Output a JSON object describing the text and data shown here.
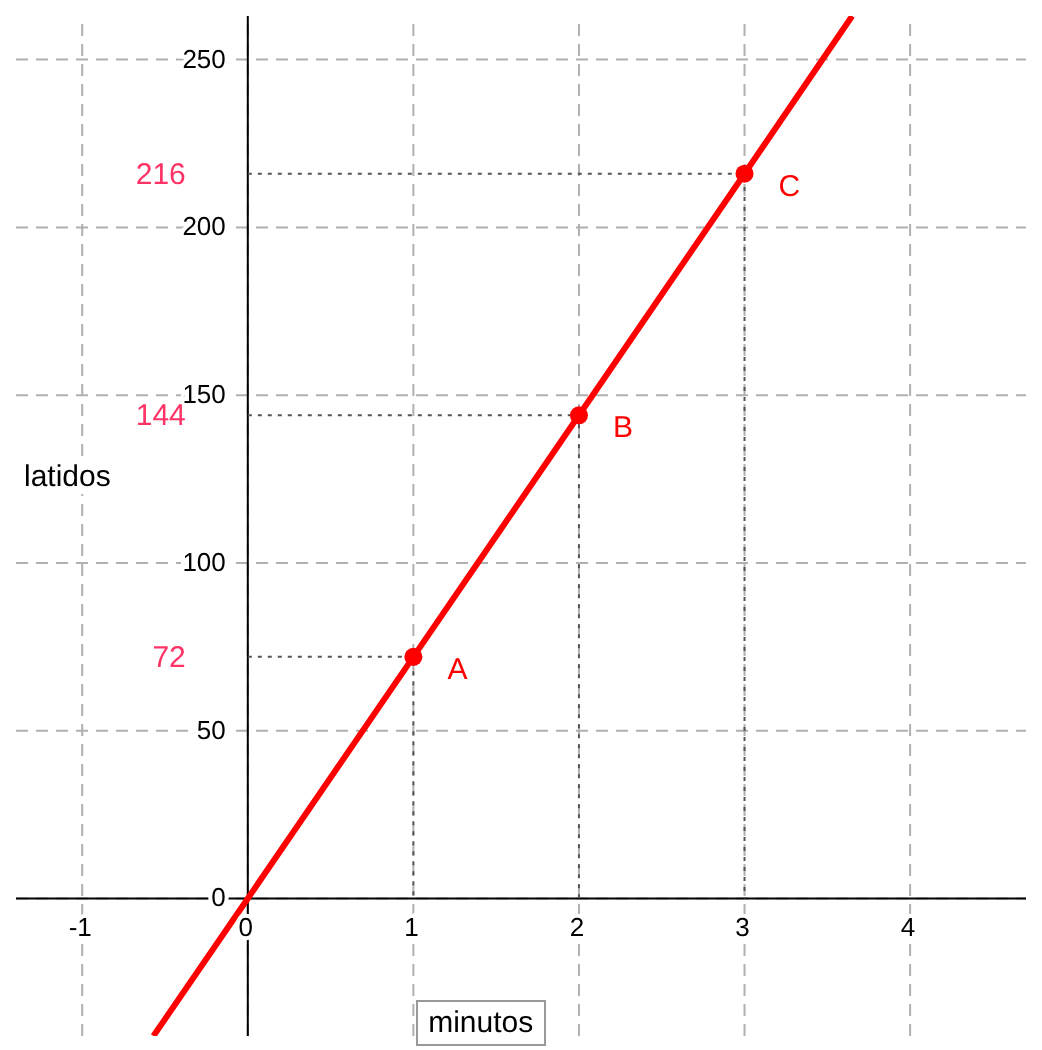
{
  "chart_data": {
    "type": "line",
    "xlabel": "minutos",
    "ylabel": "latidos",
    "xlim": [
      -1.4,
      4.7
    ],
    "ylim": [
      -41,
      263
    ],
    "xticks": [
      -1,
      0,
      1,
      2,
      3,
      4
    ],
    "yticks": [
      0,
      50,
      100,
      150,
      200,
      250
    ],
    "grid": true,
    "series": [
      {
        "color": "#ff0000",
        "x": [
          -0.57,
          0,
          1,
          2,
          3,
          3.65
        ],
        "values": [
          -41,
          0,
          72,
          144,
          216,
          263
        ],
        "marker": "none",
        "line_style": "solid"
      },
      {
        "type": "scatter",
        "color": "#ff0000",
        "x": [
          1,
          2,
          3
        ],
        "values": [
          72,
          144,
          216
        ],
        "marker": "circle"
      },
      {
        "color": "#555555",
        "x": [
          0,
          1,
          1
        ],
        "values": [
          72,
          72,
          0
        ],
        "marker": "none",
        "line_style": "dotted"
      },
      {
        "color": "#555555",
        "x": [
          0,
          2,
          2
        ],
        "values": [
          144,
          144,
          0
        ],
        "marker": "none",
        "line_style": "dotted"
      },
      {
        "color": "#555555",
        "x": [
          0,
          3,
          3
        ],
        "values": [
          216,
          216,
          0
        ],
        "marker": "none",
        "line_style": "dotted"
      }
    ],
    "annotations": [
      {
        "text": "72",
        "x": 0,
        "y": 72
      },
      {
        "text": "144",
        "x": 0,
        "y": 144
      },
      {
        "text": "216",
        "x": 0,
        "y": 216
      },
      {
        "text": "A",
        "x": 1,
        "y": 72
      },
      {
        "text": "B",
        "x": 2,
        "y": 144
      },
      {
        "text": "C",
        "x": 3,
        "y": 216
      }
    ]
  }
}
